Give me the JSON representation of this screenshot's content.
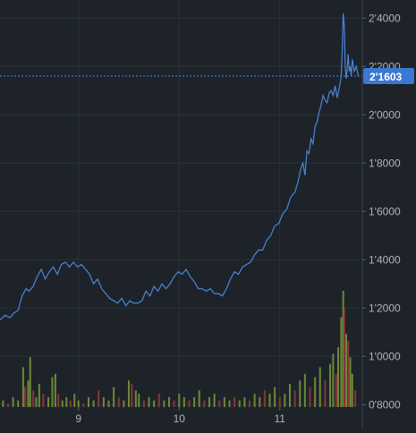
{
  "colors": {
    "background": "#1e2329",
    "grid": "#2b323b",
    "line": "#4a86d9",
    "crosshair": "#4a86d9",
    "price_badge_bg": "#3a78d4",
    "price_badge_text": "#ffffff",
    "tick_text": "#aeb4bb",
    "volume_up": "#7a9a3a",
    "volume_down": "#9b3b3b"
  },
  "chart_data": {
    "type": "line",
    "title": "",
    "xlabel": "",
    "ylabel": "",
    "grid": true,
    "legend": "none",
    "x_ticks": [
      {
        "label": "9",
        "x": 9
      },
      {
        "label": "10",
        "x": 10
      },
      {
        "label": "11",
        "x": 11
      }
    ],
    "xlim": [
      8.22,
      11.82
    ],
    "y_ticks": [
      {
        "label": "0'8000",
        "value": 0.8
      },
      {
        "label": "1'0000",
        "value": 1.0
      },
      {
        "label": "1'2000",
        "value": 1.2
      },
      {
        "label": "1'4000",
        "value": 1.4
      },
      {
        "label": "1'6000",
        "value": 1.6
      },
      {
        "label": "1'8000",
        "value": 1.8
      },
      {
        "label": "2'0000",
        "value": 2.0
      },
      {
        "label": "2'2000",
        "value": 2.2
      },
      {
        "label": "2'4000",
        "value": 2.4
      }
    ],
    "ylim": [
      0.79,
      2.475
    ],
    "current_price": {
      "label": "2'1603",
      "value": 2.1603
    },
    "series": [
      {
        "x": [
          8.22,
          8.27,
          8.32,
          8.36,
          8.4,
          8.44,
          8.48,
          8.51,
          8.55,
          8.59,
          8.63,
          8.67,
          8.71,
          8.75,
          8.79,
          8.83,
          8.87,
          8.91,
          8.95,
          8.99,
          9.03,
          9.07,
          9.11,
          9.15,
          9.19,
          9.23,
          9.27,
          9.31,
          9.35,
          9.39,
          9.43,
          9.47,
          9.51,
          9.55,
          9.59,
          9.63,
          9.67,
          9.71,
          9.75,
          9.79,
          9.83,
          9.87,
          9.91,
          9.95,
          9.99,
          10.03,
          10.07,
          10.11,
          10.15,
          10.19,
          10.23,
          10.27,
          10.31,
          10.35,
          10.39,
          10.43,
          10.47,
          10.51,
          10.55,
          10.59,
          10.63,
          10.67,
          10.71,
          10.75,
          10.79,
          10.83,
          10.87,
          10.91,
          10.95,
          10.99,
          11.03,
          11.07,
          11.11,
          11.15,
          11.18,
          11.21,
          11.23,
          11.25,
          11.27,
          11.29,
          11.31,
          11.33,
          11.35,
          11.37,
          11.39,
          11.41,
          11.43,
          11.45,
          11.47,
          11.49,
          11.51,
          11.53,
          11.55,
          11.57,
          11.59,
          11.6,
          11.61,
          11.62,
          11.63,
          11.64,
          11.65,
          11.66,
          11.67,
          11.68,
          11.69,
          11.7,
          11.71,
          11.72,
          11.74,
          11.76,
          11.78
        ],
        "y": [
          1.15,
          1.17,
          1.16,
          1.18,
          1.19,
          1.25,
          1.28,
          1.27,
          1.29,
          1.33,
          1.36,
          1.32,
          1.35,
          1.37,
          1.34,
          1.38,
          1.39,
          1.37,
          1.39,
          1.37,
          1.38,
          1.36,
          1.34,
          1.3,
          1.32,
          1.28,
          1.26,
          1.24,
          1.23,
          1.22,
          1.24,
          1.21,
          1.23,
          1.22,
          1.22,
          1.23,
          1.27,
          1.25,
          1.29,
          1.27,
          1.3,
          1.28,
          1.3,
          1.33,
          1.35,
          1.34,
          1.36,
          1.33,
          1.31,
          1.28,
          1.28,
          1.27,
          1.28,
          1.26,
          1.26,
          1.25,
          1.28,
          1.32,
          1.35,
          1.34,
          1.37,
          1.38,
          1.39,
          1.42,
          1.44,
          1.44,
          1.48,
          1.5,
          1.54,
          1.55,
          1.59,
          1.61,
          1.66,
          1.68,
          1.72,
          1.78,
          1.8,
          1.75,
          1.85,
          1.84,
          1.9,
          1.88,
          1.95,
          1.97,
          2.01,
          2.04,
          2.08,
          2.06,
          2.05,
          2.09,
          2.1,
          2.08,
          2.12,
          2.07,
          2.11,
          2.13,
          2.16,
          2.26,
          2.42,
          2.37,
          2.2,
          2.15,
          2.19,
          2.25,
          2.18,
          2.2,
          2.16,
          2.23,
          2.18,
          2.2,
          2.16
        ]
      }
    ],
    "volume": [
      {
        "x": 8.25,
        "v": 0.02,
        "up": true
      },
      {
        "x": 8.3,
        "v": 0.01,
        "up": false
      },
      {
        "x": 8.35,
        "v": 0.03,
        "up": true
      },
      {
        "x": 8.4,
        "v": 0.02,
        "up": true
      },
      {
        "x": 8.45,
        "v": 0.12,
        "up": true
      },
      {
        "x": 8.47,
        "v": 0.06,
        "up": false
      },
      {
        "x": 8.5,
        "v": 0.08,
        "up": true
      },
      {
        "x": 8.52,
        "v": 0.15,
        "up": true
      },
      {
        "x": 8.55,
        "v": 0.05,
        "up": false
      },
      {
        "x": 8.58,
        "v": 0.03,
        "up": true
      },
      {
        "x": 8.61,
        "v": 0.07,
        "up": true
      },
      {
        "x": 8.65,
        "v": 0.04,
        "up": false
      },
      {
        "x": 8.7,
        "v": 0.03,
        "up": true
      },
      {
        "x": 8.74,
        "v": 0.09,
        "up": true
      },
      {
        "x": 8.77,
        "v": 0.1,
        "up": true
      },
      {
        "x": 8.8,
        "v": 0.04,
        "up": false
      },
      {
        "x": 8.84,
        "v": 0.02,
        "up": true
      },
      {
        "x": 8.88,
        "v": 0.03,
        "up": true
      },
      {
        "x": 8.92,
        "v": 0.02,
        "up": false
      },
      {
        "x": 8.96,
        "v": 0.04,
        "up": true
      },
      {
        "x": 9.0,
        "v": 0.02,
        "up": true
      },
      {
        "x": 9.05,
        "v": 0.01,
        "up": false
      },
      {
        "x": 9.1,
        "v": 0.03,
        "up": true
      },
      {
        "x": 9.15,
        "v": 0.02,
        "up": true
      },
      {
        "x": 9.2,
        "v": 0.05,
        "up": false
      },
      {
        "x": 9.25,
        "v": 0.03,
        "up": true
      },
      {
        "x": 9.3,
        "v": 0.02,
        "up": true
      },
      {
        "x": 9.35,
        "v": 0.06,
        "up": true
      },
      {
        "x": 9.4,
        "v": 0.03,
        "up": false
      },
      {
        "x": 9.45,
        "v": 0.02,
        "up": true
      },
      {
        "x": 9.5,
        "v": 0.08,
        "up": true
      },
      {
        "x": 9.53,
        "v": 0.07,
        "up": false
      },
      {
        "x": 9.57,
        "v": 0.05,
        "up": true
      },
      {
        "x": 9.6,
        "v": 0.04,
        "up": true
      },
      {
        "x": 9.65,
        "v": 0.02,
        "up": false
      },
      {
        "x": 9.7,
        "v": 0.03,
        "up": true
      },
      {
        "x": 9.75,
        "v": 0.02,
        "up": true
      },
      {
        "x": 9.8,
        "v": 0.04,
        "up": false
      },
      {
        "x": 9.85,
        "v": 0.02,
        "up": true
      },
      {
        "x": 9.9,
        "v": 0.03,
        "up": true
      },
      {
        "x": 9.95,
        "v": 0.02,
        "up": false
      },
      {
        "x": 10.0,
        "v": 0.04,
        "up": true
      },
      {
        "x": 10.05,
        "v": 0.03,
        "up": true
      },
      {
        "x": 10.1,
        "v": 0.02,
        "up": false
      },
      {
        "x": 10.15,
        "v": 0.03,
        "up": true
      },
      {
        "x": 10.2,
        "v": 0.05,
        "up": true
      },
      {
        "x": 10.25,
        "v": 0.02,
        "up": false
      },
      {
        "x": 10.3,
        "v": 0.03,
        "up": true
      },
      {
        "x": 10.35,
        "v": 0.04,
        "up": true
      },
      {
        "x": 10.4,
        "v": 0.02,
        "up": false
      },
      {
        "x": 10.45,
        "v": 0.03,
        "up": true
      },
      {
        "x": 10.5,
        "v": 0.02,
        "up": true
      },
      {
        "x": 10.55,
        "v": 0.03,
        "up": false
      },
      {
        "x": 10.6,
        "v": 0.02,
        "up": true
      },
      {
        "x": 10.65,
        "v": 0.03,
        "up": true
      },
      {
        "x": 10.7,
        "v": 0.02,
        "up": false
      },
      {
        "x": 10.75,
        "v": 0.04,
        "up": true
      },
      {
        "x": 10.8,
        "v": 0.03,
        "up": true
      },
      {
        "x": 10.85,
        "v": 0.05,
        "up": false
      },
      {
        "x": 10.9,
        "v": 0.04,
        "up": true
      },
      {
        "x": 10.95,
        "v": 0.06,
        "up": true
      },
      {
        "x": 11.0,
        "v": 0.03,
        "up": false
      },
      {
        "x": 11.05,
        "v": 0.04,
        "up": true
      },
      {
        "x": 11.1,
        "v": 0.07,
        "up": true
      },
      {
        "x": 11.15,
        "v": 0.05,
        "up": false
      },
      {
        "x": 11.2,
        "v": 0.08,
        "up": true
      },
      {
        "x": 11.25,
        "v": 0.1,
        "up": true
      },
      {
        "x": 11.3,
        "v": 0.06,
        "up": false
      },
      {
        "x": 11.35,
        "v": 0.09,
        "up": true
      },
      {
        "x": 11.4,
        "v": 0.12,
        "up": true
      },
      {
        "x": 11.45,
        "v": 0.08,
        "up": false
      },
      {
        "x": 11.5,
        "v": 0.13,
        "up": true
      },
      {
        "x": 11.53,
        "v": 0.16,
        "up": true
      },
      {
        "x": 11.56,
        "v": 0.1,
        "up": false
      },
      {
        "x": 11.58,
        "v": 0.18,
        "up": true
      },
      {
        "x": 11.61,
        "v": 0.27,
        "up": true
      },
      {
        "x": 11.63,
        "v": 0.35,
        "up": true
      },
      {
        "x": 11.64,
        "v": 0.3,
        "up": false
      },
      {
        "x": 11.66,
        "v": 0.22,
        "up": true
      },
      {
        "x": 11.68,
        "v": 0.2,
        "up": false
      },
      {
        "x": 11.7,
        "v": 0.15,
        "up": true
      },
      {
        "x": 11.72,
        "v": 0.1,
        "up": true
      },
      {
        "x": 11.75,
        "v": 0.05,
        "up": false
      }
    ]
  }
}
